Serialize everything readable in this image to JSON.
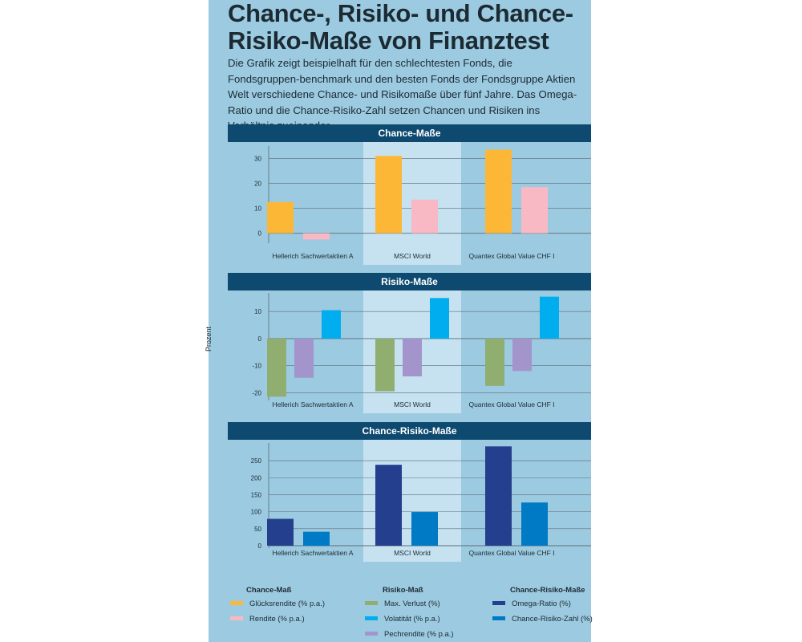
{
  "title": "Chance-, Risiko- und Chance-Risiko-Maße von Finanztest",
  "subtitle": "Die Grafik zeigt beispielhaft für den schlechtesten Fonds, die Fondsgruppen-benchmark und den besten Fonds der Fondsgruppe Aktien Welt verschiedene Chance- und Risikomaße über fünf Jahre. Das Omega-Ratio und die Chance-Risiko-Zahl setzen Chancen und Risiken ins Verhältnis zueinander.",
  "y_axis_label": "Prozent",
  "colors": {
    "header_bg": "#0e4a70",
    "panel_bg": "#9ccae0",
    "highlight_bg": "#c6e2f1"
  },
  "chart_data": [
    {
      "type": "bar",
      "title": "Chance-Maße",
      "categories": [
        "Hellerich Sachwertaktien A",
        "MSCI World",
        "Quantex Global Value CHF I"
      ],
      "highlight_category": "MSCI World",
      "ylim": [
        -3,
        34
      ],
      "yticks": [
        0,
        10,
        20,
        30
      ],
      "series": [
        {
          "name": "Glücksrendite (% p.a.)",
          "color": "#fdb736",
          "values": [
            12.5,
            31,
            33.5
          ]
        },
        {
          "name": "Rendite (% p.a.)",
          "color": "#f8b9c5",
          "values": [
            -2.5,
            13.5,
            18.5
          ]
        }
      ]
    },
    {
      "type": "bar",
      "title": "Risiko-Maße",
      "categories": [
        "Hellerich Sachwertaktien A",
        "MSCI World",
        "Quantex Global Value CHF I"
      ],
      "highlight_category": "MSCI World",
      "ylim": [
        -22,
        16
      ],
      "yticks": [
        -20,
        -10,
        0,
        10
      ],
      "series": [
        {
          "name": "Max. Verlust (%)",
          "color": "#8fae70",
          "values": [
            -21.5,
            -19.5,
            -17.5
          ]
        },
        {
          "name": "Pechrendite (% p.a.)",
          "color": "#a394cc",
          "values": [
            -14.5,
            -14,
            -12
          ]
        },
        {
          "name": "Volatität (% p.a.)",
          "color": "#00aeef",
          "values": [
            10.5,
            15,
            15.5
          ]
        }
      ]
    },
    {
      "type": "bar",
      "title": "Chance-Risiko-Maße",
      "categories": [
        "Hellerich Sachwertaktien A",
        "MSCI World",
        "Quantex Global Value CHF I"
      ],
      "highlight_category": "MSCI World",
      "ylim": [
        0,
        295
      ],
      "yticks": [
        0,
        50,
        100,
        150,
        200,
        250
      ],
      "series": [
        {
          "name": "Omega-Ratio (%)",
          "color": "#243f8d",
          "values": [
            79,
            238,
            292
          ]
        },
        {
          "name": "Chance-Risiko-Zahl (%)",
          "color": "#007ac4",
          "values": [
            41,
            99,
            127
          ]
        }
      ]
    }
  ],
  "legend": {
    "groups": [
      {
        "heading": "Chance-Maß",
        "items": [
          {
            "label": "Glücksrendite (% p.a.)",
            "color": "#fdb736"
          },
          {
            "label": "Rendite (% p.a.)",
            "color": "#f8b9c5"
          }
        ]
      },
      {
        "heading": "Risiko-Maß",
        "items": [
          {
            "label": "Max. Verlust (%)",
            "color": "#8fae70"
          },
          {
            "label": "Volatität (% p.a.)",
            "color": "#00aeef"
          },
          {
            "label": "Pechrendite (% p.a.)",
            "color": "#a394cc"
          }
        ]
      },
      {
        "heading": "Chance-Risiko-Maße",
        "items": [
          {
            "label": "Omega-Ratio (%)",
            "color": "#243f8d"
          },
          {
            "label": "Chance-Risiko-Zahl (%)",
            "color": "#007ac4"
          }
        ]
      }
    ]
  }
}
